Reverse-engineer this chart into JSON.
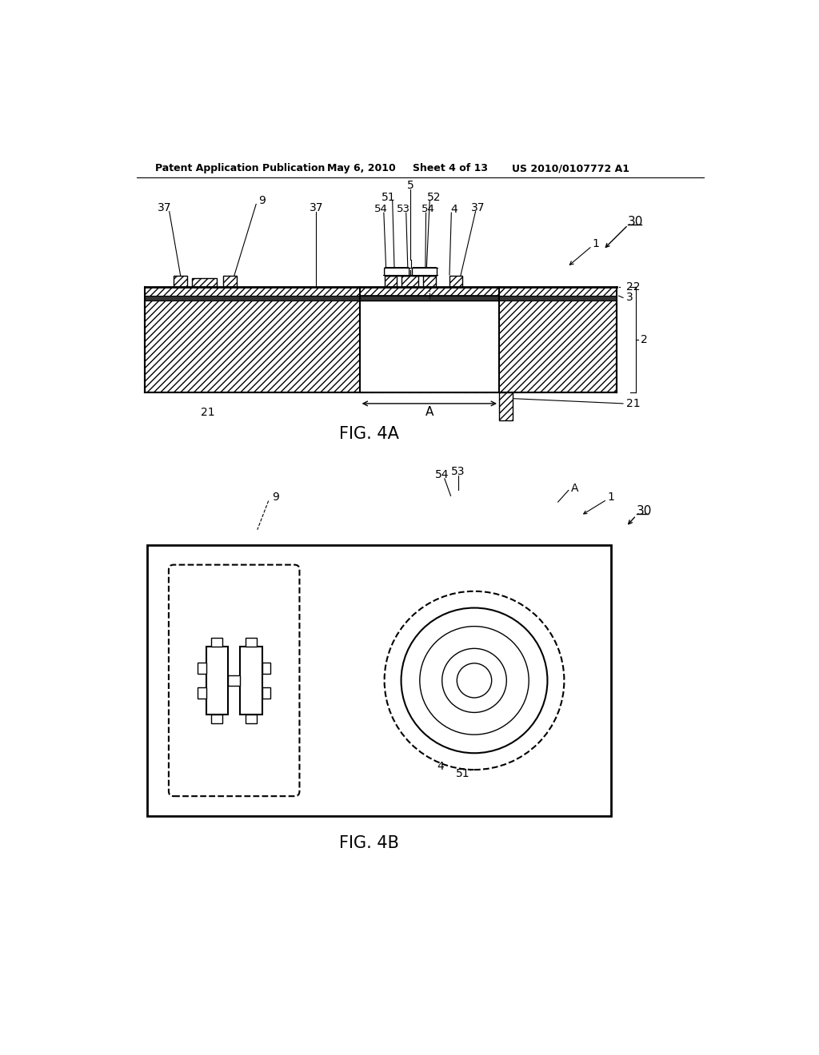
{
  "bg_color": "#ffffff",
  "line_color": "#000000",
  "header_text": "Patent Application Publication",
  "header_date": "May 6, 2010",
  "header_sheet": "Sheet 4 of 13",
  "header_patent": "US 2010/0107772 A1",
  "fig4a_label": "FIG. 4A",
  "fig4b_label": "FIG. 4B"
}
